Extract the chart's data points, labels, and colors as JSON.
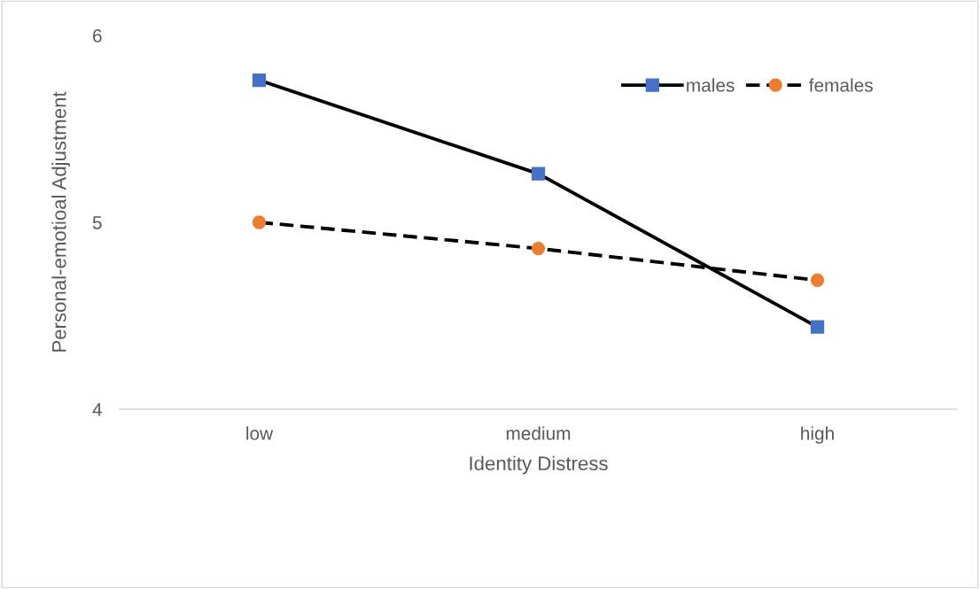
{
  "chart_data": {
    "type": "line",
    "xlabel": "Identity Distress",
    "ylabel": "Personal-emotioal Adjustment",
    "categories": [
      "low",
      "medium",
      "high"
    ],
    "series": [
      {
        "name": "males",
        "color": "#4472c4",
        "marker": "square",
        "line_style": "solid",
        "values": [
          5.76,
          5.26,
          4.44
        ]
      },
      {
        "name": "females",
        "color": "#ed7d31",
        "marker": "circle",
        "line_style": "dashed",
        "values": [
          5.0,
          4.86,
          4.69
        ]
      }
    ],
    "ylim": [
      4,
      6
    ],
    "yticks": [
      4,
      5,
      6
    ],
    "grid": false,
    "legend": "top right"
  }
}
